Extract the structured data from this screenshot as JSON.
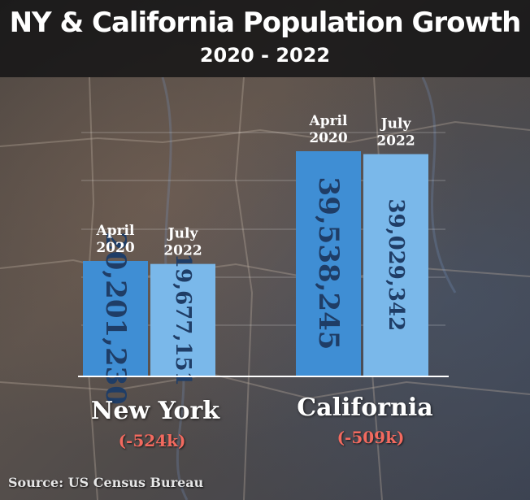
{
  "header": {
    "title": "NY & California Population Growth",
    "subtitle": "2020 - 2022"
  },
  "chart_data": {
    "type": "bar",
    "title": "NY & California Population Growth",
    "subtitle": "2020 - 2022",
    "categories": [
      "New York",
      "California"
    ],
    "series": [
      {
        "name": "April 2020",
        "values": [
          20201230,
          39538245
        ],
        "labels": [
          "20,201,230",
          "39,538,245"
        ],
        "color": "#3f8ed4"
      },
      {
        "name": "July 2022",
        "values": [
          19677151,
          39029342
        ],
        "labels": [
          "19,677,151",
          "39,029,342"
        ],
        "color": "#7ab8ea"
      }
    ],
    "bar_labels": [
      [
        "April",
        "2020"
      ],
      [
        "July",
        "2022"
      ]
    ],
    "changes": [
      "(-524k)",
      "(-509k)"
    ],
    "grid": true,
    "source": "Source: US Census Bureau"
  },
  "colors": {
    "bar_2020": "#3f8ed4",
    "bar_2022": "#7ab8ea",
    "value_text": "#1f3d66",
    "change_text": "#f36a5f"
  }
}
